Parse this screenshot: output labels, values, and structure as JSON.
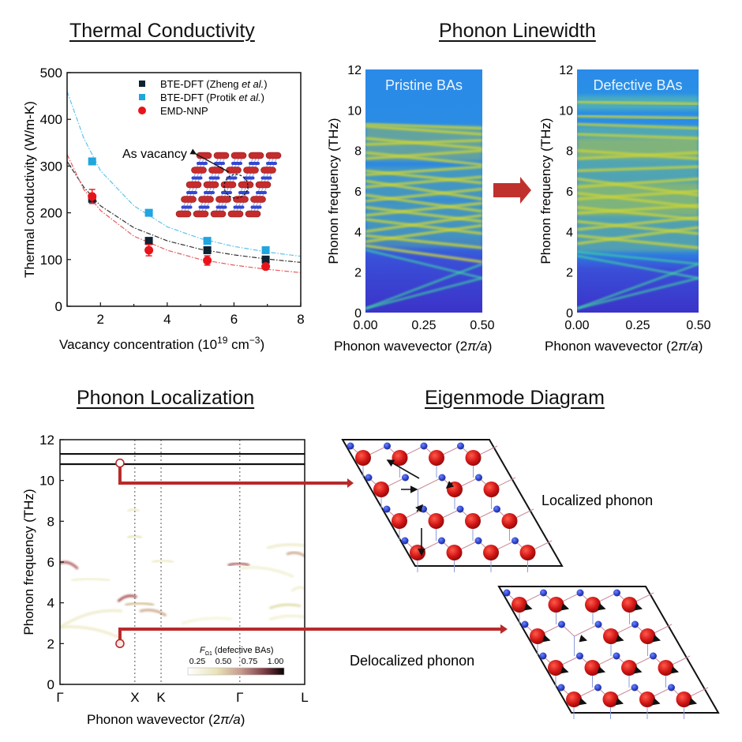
{
  "titles": {
    "thermal": "Thermal Conductivity",
    "linewidth": "Phonon Linewidth",
    "localization": "Phonon Localization",
    "eigenmode": "Eigenmode Diagram"
  },
  "colors": {
    "zheng": "#0d2233",
    "protik": "#1fa5e0",
    "emd": "#e8141a",
    "connector": "#b82a2a",
    "atom_as": "#d01414",
    "atom_b": "#2e44cc"
  },
  "chart_data": [
    {
      "type": "scatter",
      "id": "thermal-conductivity",
      "title": "Thermal Conductivity",
      "xlabel": "Vacancy concentration  (10^19 cm^-3)",
      "xlabel_parts": {
        "main": "Vacancy concentration  (10",
        "sup1": "19",
        "mid": " cm",
        "sup2": "−3",
        "end": ")"
      },
      "ylabel": "Thermal conductivity (W/m-K)",
      "xlim": [
        1,
        8
      ],
      "ylim": [
        0,
        500
      ],
      "xticks": [
        2,
        4,
        6,
        8
      ],
      "yticks": [
        0,
        100,
        200,
        300,
        400,
        500
      ],
      "legend_position": "top-right",
      "series": [
        {
          "name": "BTE-DFT (Zheng et al.)",
          "label_main": "BTE-DFT (Zheng ",
          "label_italic": "et al.",
          "label_end": ")",
          "marker": "square",
          "color": "#0d2233",
          "x": [
            1.75,
            3.45,
            5.2,
            6.95
          ],
          "y": [
            230,
            140,
            120,
            100
          ],
          "fit": {
            "a": 110,
            "b": 1.0,
            "c": 0,
            "x": [
              1.0,
              8.0
            ],
            "label": "fit-zheng"
          }
        },
        {
          "name": "BTE-DFT (Protik et al.)",
          "label_main": "BTE-DFT (Protik ",
          "label_italic": "et al.",
          "label_end": ")",
          "marker": "square",
          "color": "#1fa5e0",
          "x": [
            1.75,
            3.45,
            5.2,
            6.95
          ],
          "y": [
            310,
            200,
            140,
            120
          ]
        },
        {
          "name": "EMD-NNP",
          "label_main": "EMD-NNP",
          "label_italic": "",
          "label_end": "",
          "marker": "circle",
          "color": "#e8141a",
          "x": [
            1.75,
            3.45,
            5.2,
            6.95
          ],
          "y": [
            235,
            120,
            98,
            85
          ],
          "yerr": [
            15,
            12,
            10,
            6
          ]
        }
      ],
      "fit_curves": [
        {
          "name": "Protik fit",
          "color": "#5fc2e8",
          "points": [
            [
              1.0,
              460
            ],
            [
              1.5,
              360
            ],
            [
              2,
              290
            ],
            [
              3,
              215
            ],
            [
              4,
              170
            ],
            [
              5,
              145
            ],
            [
              6,
              128
            ],
            [
              7,
              116
            ],
            [
              8,
              107
            ]
          ]
        },
        {
          "name": "Zheng fit",
          "color": "#333333",
          "points": [
            [
              1.0,
              310
            ],
            [
              1.5,
              255
            ],
            [
              2,
              215
            ],
            [
              3,
              168
            ],
            [
              4,
              140
            ],
            [
              5,
              122
            ],
            [
              6,
              110
            ],
            [
              7,
              101
            ],
            [
              8,
              94
            ]
          ]
        },
        {
          "name": "EMD fit",
          "color": "#e85a5a",
          "points": [
            [
              1.0,
              325
            ],
            [
              1.5,
              250
            ],
            [
              2,
              205
            ],
            [
              3,
              150
            ],
            [
              4,
              120
            ],
            [
              5,
              100
            ],
            [
              6,
              88
            ],
            [
              7,
              79
            ],
            [
              8,
              72
            ]
          ]
        }
      ],
      "annotation": "As vacancy"
    },
    {
      "type": "heatmap",
      "id": "linewidth-pristine",
      "label": "Pristine BAs",
      "xlabel": "Phonon wavevector (2π/a)",
      "xlabel_parts": {
        "main": "Phonon wavevector (2",
        "italic": "π/a",
        "end": ")"
      },
      "ylabel": "Phonon frequency (THz)",
      "xlim": [
        0,
        0.5
      ],
      "ylim": [
        0,
        12
      ],
      "xticks": [
        "0.00",
        "0.25",
        "0.50"
      ],
      "yticks": [
        0,
        2,
        4,
        6,
        8,
        10,
        12
      ],
      "bands": [
        {
          "y0": 0.2,
          "y1": 2.4
        },
        {
          "y0": 0.2,
          "y1": 1.7
        },
        {
          "y0": 3.1,
          "y1": 1.7
        },
        {
          "y0": 3.3,
          "y1": 2.5
        },
        {
          "y0": 3.5,
          "y1": 4.3
        },
        {
          "y0": 3.8,
          "y1": 3.2
        },
        {
          "y0": 4.0,
          "y1": 4.8
        },
        {
          "y0": 4.6,
          "y1": 3.9
        },
        {
          "y0": 4.8,
          "y1": 5.4
        },
        {
          "y0": 5.2,
          "y1": 4.5
        },
        {
          "y0": 5.5,
          "y1": 6.1
        },
        {
          "y0": 5.8,
          "y1": 5.0
        },
        {
          "y0": 6.2,
          "y1": 6.7
        },
        {
          "y0": 6.5,
          "y1": 5.6
        },
        {
          "y0": 6.8,
          "y1": 7.2
        },
        {
          "y0": 7.0,
          "y1": 6.4
        },
        {
          "y0": 7.6,
          "y1": 8.0
        },
        {
          "y0": 7.9,
          "y1": 7.3
        },
        {
          "y0": 8.3,
          "y1": 8.5
        },
        {
          "y0": 8.6,
          "y1": 8.1
        },
        {
          "y0": 9.3,
          "y1": 9.1
        },
        {
          "y0": 9.2,
          "y1": 8.8
        }
      ]
    },
    {
      "type": "heatmap",
      "id": "linewidth-defective",
      "label": "Defective BAs",
      "xlabel": "Phonon wavevector (2π/a)",
      "xlabel_parts": {
        "main": "Phonon wavevector (2",
        "italic": "π/a",
        "end": ")"
      },
      "ylabel": "Phonon frequency (THz)",
      "xlim": [
        0,
        0.5
      ],
      "ylim": [
        0,
        12
      ],
      "xticks": [
        "0.00",
        "0.25",
        "0.50"
      ],
      "yticks": [
        0,
        2,
        4,
        6,
        8,
        10,
        12
      ],
      "bands": [
        {
          "y0": 0.2,
          "y1": 2.4
        },
        {
          "y0": 0.2,
          "y1": 1.7
        },
        {
          "y0": 2.8,
          "y1": 1.7
        },
        {
          "y0": 3.0,
          "y1": 2.4
        },
        {
          "y0": 3.4,
          "y1": 4.2
        },
        {
          "y0": 3.8,
          "y1": 3.2
        },
        {
          "y0": 4.1,
          "y1": 4.7
        },
        {
          "y0": 4.5,
          "y1": 3.9
        },
        {
          "y0": 4.9,
          "y1": 5.3
        },
        {
          "y0": 5.2,
          "y1": 4.6
        },
        {
          "y0": 5.6,
          "y1": 6.0
        },
        {
          "y0": 5.9,
          "y1": 5.2
        },
        {
          "y0": 6.2,
          "y1": 6.6
        },
        {
          "y0": 6.6,
          "y1": 5.8
        },
        {
          "y0": 7.0,
          "y1": 7.2
        },
        {
          "y0": 7.6,
          "y1": 7.9
        },
        {
          "y0": 8.0,
          "y1": 7.6
        },
        {
          "y0": 8.4,
          "y1": 8.4
        },
        {
          "y0": 8.8,
          "y1": 8.6
        },
        {
          "y0": 9.3,
          "y1": 9.1
        },
        {
          "y0": 10.4,
          "y1": 10.3
        },
        {
          "y0": 9.7,
          "y1": 9.6
        }
      ]
    },
    {
      "type": "heatmap",
      "id": "phonon-localization",
      "title": "Phonon Localization",
      "xlabel": "Phonon wavevector (2π/a)",
      "xlabel_parts": {
        "main": "Phonon wavevector (2",
        "italic": "π/a",
        "end": ")"
      },
      "ylabel": "Phonon frequency (THz)",
      "ylim": [
        0,
        12
      ],
      "yticks": [
        0,
        2,
        4,
        6,
        8,
        10,
        12
      ],
      "kpoints": [
        {
          "label": "Γ",
          "pos": 0.0
        },
        {
          "label": "X",
          "pos": 0.306
        },
        {
          "label": "K",
          "pos": 0.413
        },
        {
          "label": "Γ",
          "pos": 0.735
        },
        {
          "label": "L",
          "pos": 1.0
        }
      ],
      "flat_bands": [
        11.3,
        10.8
      ],
      "colorbar": {
        "label_main": "F",
        "label_sub": "Ω1",
        "label_end": " (defective BAs)",
        "ticks": [
          "0.25",
          "0.50",
          "0.75",
          "1.00"
        ],
        "range": [
          0.25,
          1.0
        ]
      },
      "highlights": [
        {
          "name": "localized-marker",
          "pos": 0.245,
          "freq": 10.85
        },
        {
          "name": "delocalized-marker",
          "pos": 0.245,
          "freq": 2.0
        }
      ],
      "features": [
        {
          "pos": [
            0.0,
            0.07
          ],
          "freq": [
            5.95,
            5.7
          ],
          "intensity": 0.75
        },
        {
          "pos": [
            0.24,
            0.31
          ],
          "freq": [
            4.1,
            4.3
          ],
          "intensity": 0.8
        },
        {
          "pos": [
            0.33,
            0.43
          ],
          "freq": [
            3.6,
            3.4
          ],
          "intensity": 0.6
        },
        {
          "pos": [
            0.27,
            0.38
          ],
          "freq": [
            3.9,
            3.9
          ],
          "intensity": 0.55
        },
        {
          "pos": [
            0.69,
            0.77
          ],
          "freq": [
            5.85,
            5.85
          ],
          "intensity": 0.75
        },
        {
          "pos": [
            0.93,
            1.0
          ],
          "freq": [
            6.4,
            6.3
          ],
          "intensity": 0.6
        },
        {
          "pos": [
            0.86,
            0.98
          ],
          "freq": [
            3.75,
            3.85
          ],
          "intensity": 0.45
        },
        {
          "pos": [
            0.0,
            0.25
          ],
          "freq": [
            2.8,
            3.6
          ],
          "intensity": 0.3
        },
        {
          "pos": [
            0.0,
            0.26
          ],
          "freq": [
            2.8,
            2.2
          ],
          "intensity": 0.3
        },
        {
          "pos": [
            0.28,
            0.33
          ],
          "freq": [
            7.2,
            7.2
          ],
          "intensity": 0.35
        },
        {
          "pos": [
            0.28,
            0.32
          ],
          "freq": [
            8.5,
            8.5
          ],
          "intensity": 0.3
        },
        {
          "pos": [
            0.38,
            0.46
          ],
          "freq": [
            6.0,
            6.0
          ],
          "intensity": 0.3
        },
        {
          "pos": [
            0.85,
            1.0
          ],
          "freq": [
            6.7,
            6.8
          ],
          "intensity": 0.3
        },
        {
          "pos": [
            0.05,
            0.2
          ],
          "freq": [
            5.1,
            5.1
          ],
          "intensity": 0.25
        },
        {
          "pos": [
            0.74,
            0.95
          ],
          "freq": [
            5.7,
            5.3
          ],
          "intensity": 0.25
        },
        {
          "pos": [
            0.5,
            0.7
          ],
          "freq": [
            3.0,
            3.2
          ],
          "intensity": 0.2
        },
        {
          "pos": [
            0.86,
            1.0
          ],
          "freq": [
            3.2,
            3.3
          ],
          "intensity": 0.25
        },
        {
          "pos": [
            0.95,
            1.0
          ],
          "freq": [
            4.6,
            4.7
          ],
          "intensity": 0.25
        }
      ]
    }
  ],
  "eigenmode": {
    "localized_label": "Localized phonon",
    "delocalized_label": "Delocalized phonon"
  }
}
